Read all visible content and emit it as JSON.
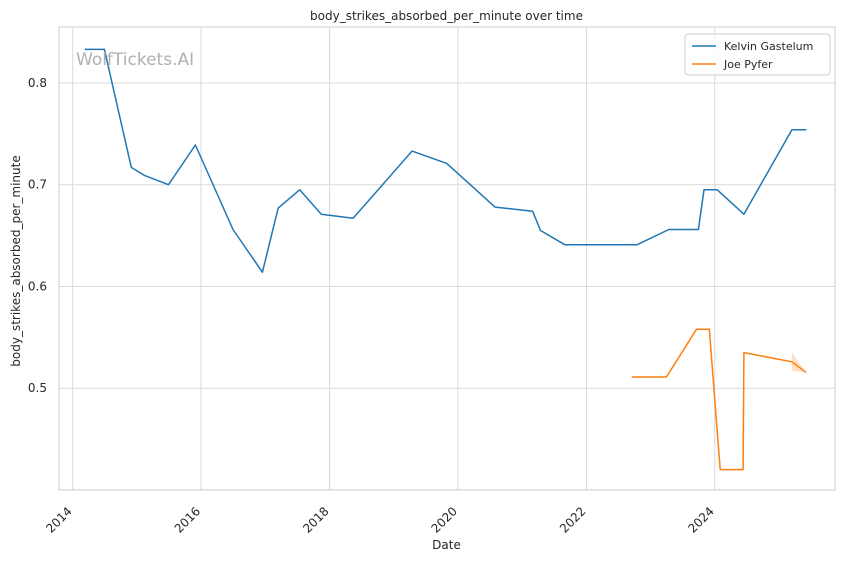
{
  "watermark": "WolfTickets.AI",
  "chart_data": {
    "type": "line",
    "title": "body_strikes_absorbed_per_minute over time",
    "xlabel": "Date",
    "ylabel": "body_strikes_absorbed_per_minute",
    "xlim": [
      "2013-10-15",
      "2025-11-15"
    ],
    "ylim": [
      0.4,
      0.855
    ],
    "xticks": [
      "2014",
      "2016",
      "2018",
      "2020",
      "2022",
      "2024"
    ],
    "yticks": [
      0.5,
      0.6,
      0.7,
      0.8
    ],
    "ytick_labels": [
      "0.5",
      "0.6",
      "0.7",
      "0.8"
    ],
    "grid": true,
    "legend_position": "top-right",
    "series": [
      {
        "name": "Kelvin Gastelum",
        "color": "#1f77b4",
        "x": [
          "2014-03-15",
          "2014-06-30",
          "2014-11-30",
          "2015-02-15",
          "2015-06-30",
          "2015-11-30",
          "2016-07-01",
          "2016-12-15",
          "2017-03-15",
          "2017-07-15",
          "2017-11-15",
          "2018-05-15",
          "2019-04-15",
          "2019-10-30",
          "2020-07-30",
          "2021-03-01",
          "2021-04-15",
          "2021-09-01",
          "2022-10-15",
          "2023-04-15",
          "2023-09-30",
          "2023-11-01",
          "2024-01-15",
          "2024-06-15",
          "2025-03-15",
          "2025-06-01"
        ],
        "y": [
          0.833,
          0.833,
          0.717,
          0.709,
          0.7,
          0.739,
          0.656,
          0.614,
          0.677,
          0.695,
          0.671,
          0.667,
          0.733,
          0.721,
          0.678,
          0.674,
          0.655,
          0.641,
          0.641,
          0.656,
          0.656,
          0.695,
          0.695,
          0.671,
          0.754,
          0.754
        ]
      },
      {
        "name": "Joe Pyfer",
        "color": "#ff7f0e",
        "x": [
          "2022-09-20",
          "2023-04-01",
          "2023-09-20",
          "2023-12-01",
          "2024-02-01",
          "2024-06-10",
          "2024-06-15",
          "2025-03-15",
          "2025-06-01"
        ],
        "y": [
          0.511,
          0.511,
          0.558,
          0.558,
          0.42,
          0.42,
          0.535,
          0.526,
          0.516
        ]
      }
    ]
  }
}
